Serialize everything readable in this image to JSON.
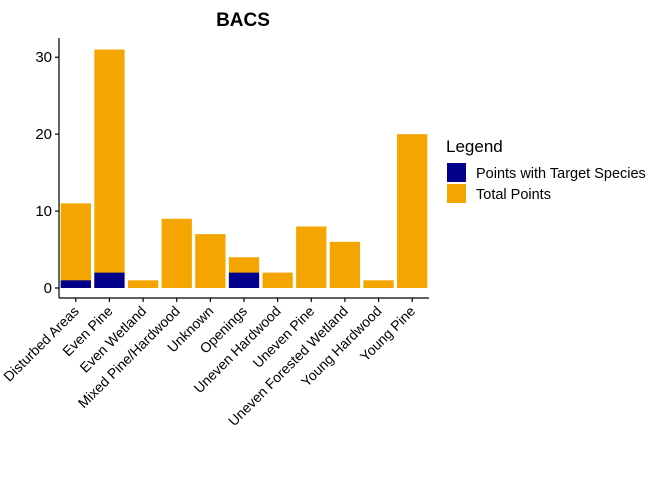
{
  "chart_data": {
    "type": "bar",
    "title": "BACS",
    "xlabel": "",
    "ylabel": "",
    "ylim": [
      0,
      32.5
    ],
    "yticks": [
      0,
      10,
      20,
      30
    ],
    "grid": false,
    "legend": {
      "title": "Legend",
      "placement": "right"
    },
    "categories": [
      "Disturbed Areas",
      "Even Pine",
      "Even Wetland",
      "Mixed Pine/Hardwood",
      "Unknown",
      "Openings",
      "Uneven Hardwood",
      "Uneven Pine",
      "Uneven Forested Wetland",
      "Young Hardwood",
      "Young Pine"
    ],
    "series": [
      {
        "name": "Total Points",
        "color": "#F5A500",
        "values": [
          11,
          31,
          1,
          9,
          7,
          4,
          2,
          8,
          6,
          1,
          20
        ]
      },
      {
        "name": "Points with Target Species",
        "color": "#00008B",
        "values": [
          1,
          2,
          0,
          0,
          0,
          2,
          0,
          0,
          0,
          0,
          0
        ]
      }
    ],
    "legend_order": [
      "Points with Target Species",
      "Total Points"
    ]
  }
}
